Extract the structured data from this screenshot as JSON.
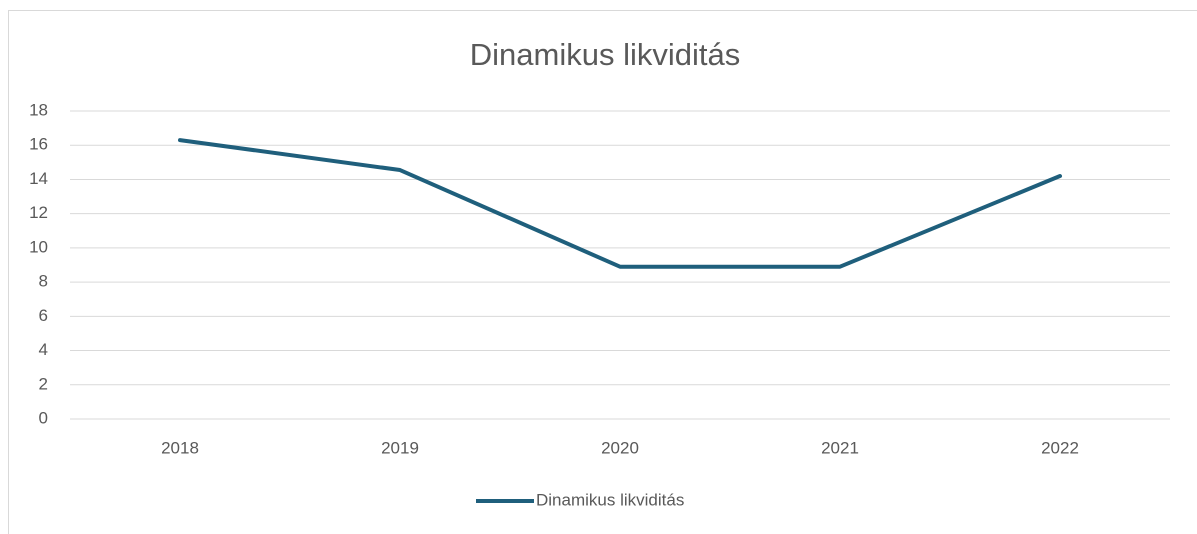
{
  "chart_data": {
    "type": "line",
    "title": "Dinamikus likviditás",
    "categories": [
      "2018",
      "2019",
      "2020",
      "2021",
      "2022"
    ],
    "series": [
      {
        "name": "Dinamikus likviditás",
        "color": "#1f5f7c",
        "values": [
          16.3,
          14.55,
          8.9,
          8.9,
          14.2
        ]
      }
    ],
    "ylim": [
      0,
      18
    ],
    "yticks": [
      0,
      2,
      4,
      6,
      8,
      10,
      12,
      14,
      16,
      18
    ],
    "grid": true,
    "legend": "bottom"
  }
}
